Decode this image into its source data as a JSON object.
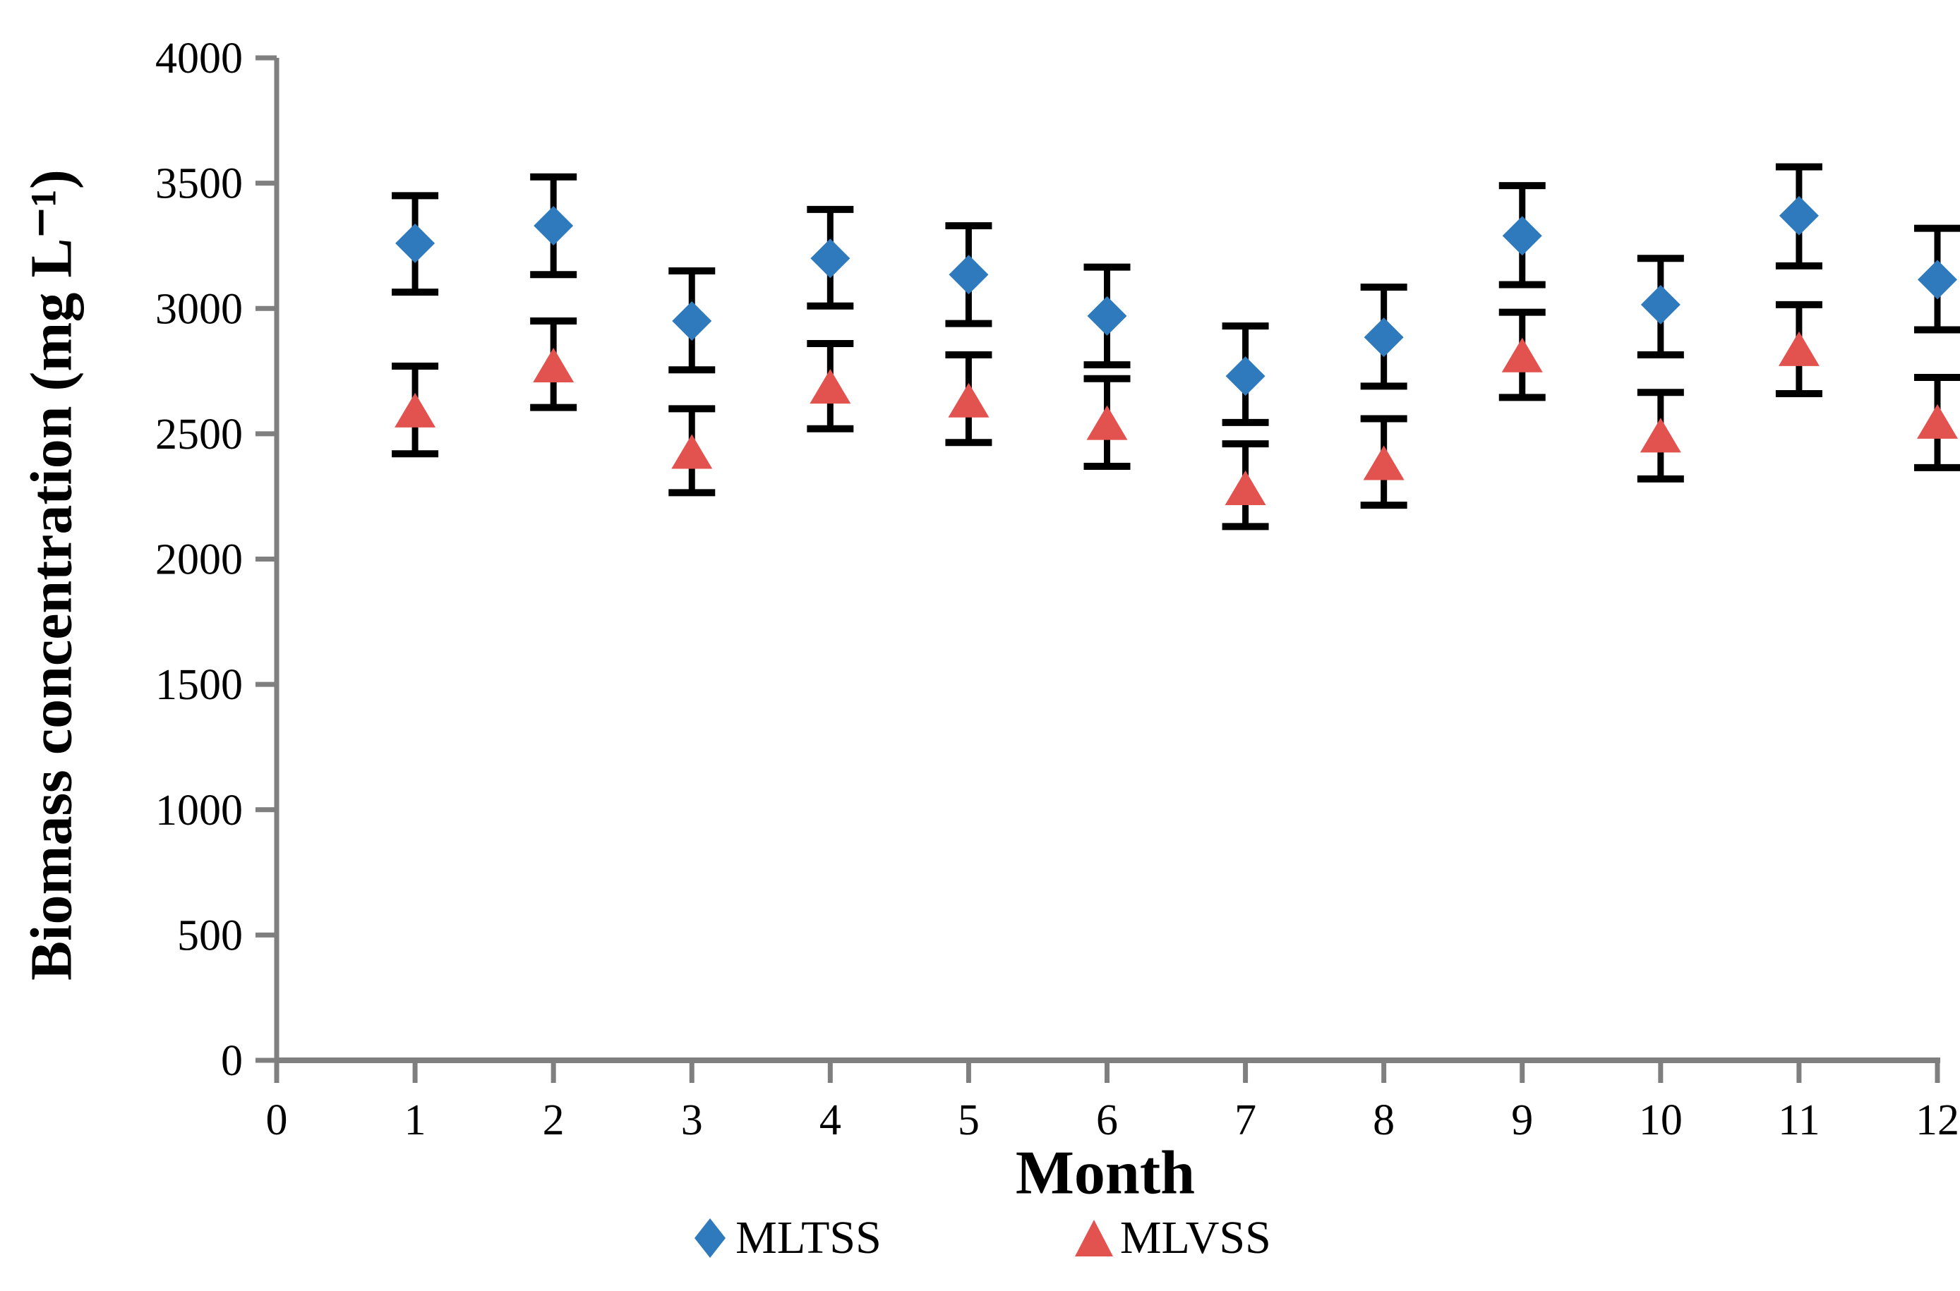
{
  "figure": {
    "background": "#ffffff",
    "axis_color": "#7f7f7f",
    "error_bar_color": "#000000",
    "text_color": "#000000"
  },
  "chart_data": {
    "type": "scatter",
    "title": "",
    "xlabel": "Month",
    "ylabel": "Biomass concentration (mg L⁻¹)",
    "xlim": [
      0,
      12
    ],
    "ylim": [
      0,
      4000
    ],
    "x_tick_labels": [
      "0",
      "1",
      "2",
      "3",
      "4",
      "5",
      "6",
      "7",
      "8",
      "9",
      "10",
      "11",
      "12"
    ],
    "y_tick_labels": [
      "0",
      "500",
      "1000",
      "1500",
      "2000",
      "2500",
      "3000",
      "3500",
      "4000"
    ],
    "y_tick_step": 500,
    "grid": false,
    "legend_position": "bottom-center",
    "error_bars": true,
    "x": [
      1,
      2,
      3,
      4,
      5,
      6,
      7,
      8,
      9,
      10,
      11,
      12
    ],
    "series": [
      {
        "name": "MLTSS",
        "marker": "diamond",
        "color": "#2E7ABD",
        "values": [
          3260,
          3330,
          2950,
          3200,
          3135,
          2970,
          2730,
          2885,
          3290,
          3015,
          3370,
          3115
        ],
        "lower": [
          3065,
          3135,
          2755,
          3010,
          2940,
          2775,
          2545,
          2690,
          3095,
          2815,
          3170,
          2915
        ],
        "upper": [
          3450,
          3525,
          3150,
          3395,
          3330,
          3165,
          2930,
          3085,
          3490,
          3200,
          3565,
          3320
        ]
      },
      {
        "name": "MLVSS",
        "marker": "triangle",
        "color": "#E2534F",
        "values": [
          2590,
          2770,
          2425,
          2685,
          2630,
          2540,
          2280,
          2380,
          2810,
          2490,
          2835,
          2545
        ],
        "lower": [
          2420,
          2605,
          2265,
          2520,
          2465,
          2370,
          2130,
          2215,
          2645,
          2320,
          2660,
          2365
        ],
        "upper": [
          2770,
          2950,
          2600,
          2860,
          2815,
          2720,
          2460,
          2560,
          2985,
          2665,
          3015,
          2725
        ]
      }
    ]
  }
}
